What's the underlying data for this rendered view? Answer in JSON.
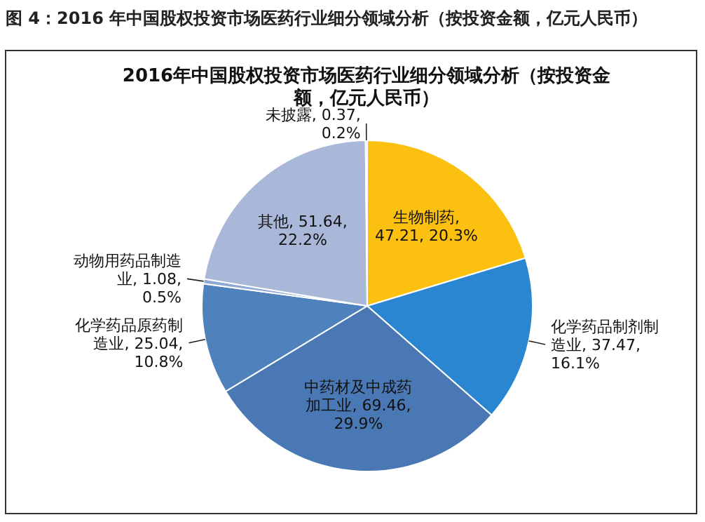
{
  "chart_data": {
    "type": "pie",
    "title": "2016年中国股权投资市场医药行业细分领域分析（按投资金额，亿元人民币）",
    "annotations": [
      "图 4：2016 年中国股权投资市场医药行业细分领域分析（按投资金额，亿元人民币）"
    ],
    "categories": [
      "生物制药",
      "化学药品制剂制造业",
      "中药材及中成药加工业",
      "化学药品原药制造业",
      "动物用药品制造业",
      "其他",
      "未披露"
    ],
    "values": [
      47.21,
      37.47,
      69.46,
      25.04,
      1.08,
      51.64,
      0.37
    ],
    "value_labels": [
      ", 47.21, 20.3%",
      ", 37.47, 16.1%",
      ", 69.46, 29.9%",
      ", 25.04, 10.8%",
      ", 1.08, 0.5%",
      ", 51.64, 22.2%",
      ", 0.37, 0.2%"
    ],
    "colors": [
      "#fbc010",
      "#2a86d0",
      "#4a78b4",
      "#4f81bd",
      "#8ea9d6",
      "#a9b8d8",
      "#bfcbe3"
    ],
    "legend": false
  }
}
